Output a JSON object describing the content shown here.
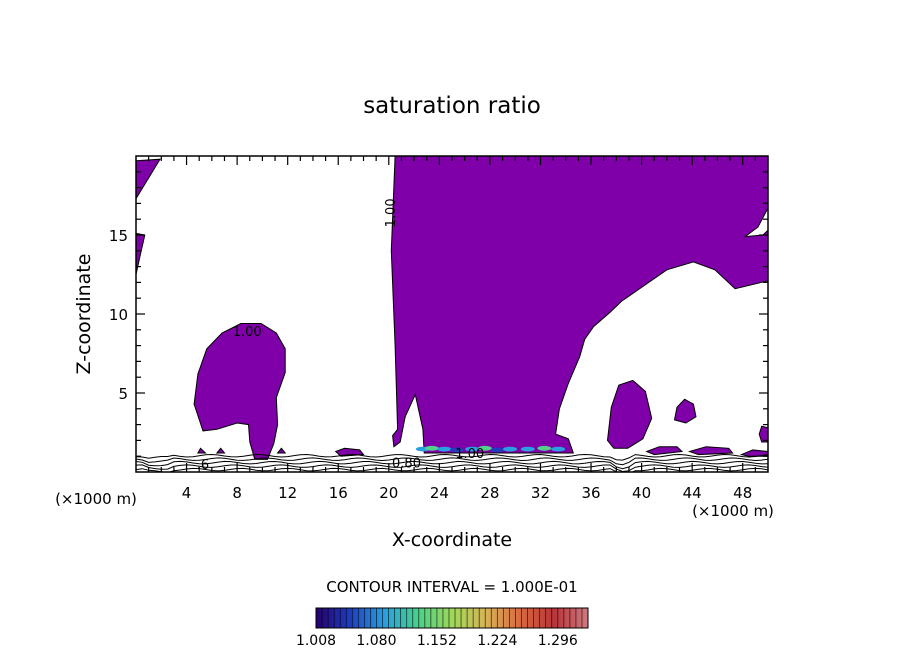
{
  "chart_data": {
    "type": "contour",
    "title": "saturation ratio",
    "xlabel": "X-coordinate",
    "ylabel": "Z-coordinate",
    "x_unit_left": "(×1000 m)",
    "x_unit_right": "(×1000 m)",
    "xlim": [
      0,
      50
    ],
    "ylim": [
      0,
      20
    ],
    "xticks": [
      4,
      8,
      12,
      16,
      20,
      24,
      28,
      32,
      36,
      40,
      44,
      48
    ],
    "yticks": [
      5,
      10,
      15
    ],
    "fill_color": "#7f00a8",
    "contour_labels": [
      {
        "text": "1.00",
        "x": 20.5,
        "y": 16.4,
        "rotated": true
      },
      {
        "text": "1.00",
        "x": 8.8,
        "y": 8.6
      },
      {
        "text": "0.80",
        "x": 21.4,
        "y": 0.3
      },
      {
        "text": "1.00",
        "x": 26.4,
        "y": 0.9
      },
      {
        "text": ".6",
        "x": 5.3,
        "y": 0.2
      }
    ],
    "contour_interval_text": "CONTOUR INTERVAL = 1.000E-01",
    "colorbar": {
      "ticks": [
        "1.008",
        "1.080",
        "1.152",
        "1.224",
        "1.296"
      ],
      "min": 1.008,
      "max": 1.332,
      "colors": [
        "#24006e",
        "#1f3dbd",
        "#2a9ee0",
        "#49d08a",
        "#9fd85a",
        "#d7b357",
        "#d96a3f",
        "#b8343a",
        "#d07a80"
      ]
    },
    "regions": [
      {
        "name": "upper-left-edge-patch",
        "pts": [
          [
            0,
            19.7
          ],
          [
            1.9,
            19.8
          ],
          [
            1.3,
            19.0
          ],
          [
            0,
            17.3
          ]
        ]
      },
      {
        "name": "left-edge-patch",
        "pts": [
          [
            0,
            15.1
          ],
          [
            0.7,
            15.0
          ],
          [
            0.3,
            13.6
          ],
          [
            0,
            12.5
          ]
        ]
      },
      {
        "name": "left-blob",
        "pts": [
          [
            4.6,
            4.3
          ],
          [
            4.9,
            6.2
          ],
          [
            5.6,
            7.8
          ],
          [
            6.8,
            8.8
          ],
          [
            8.3,
            9.4
          ],
          [
            9.9,
            9.4
          ],
          [
            11.1,
            8.8
          ],
          [
            11.8,
            7.8
          ],
          [
            11.8,
            6.3
          ],
          [
            11.1,
            4.7
          ],
          [
            11.2,
            3.0
          ],
          [
            10.9,
            1.8
          ],
          [
            10.4,
            0.8
          ],
          [
            9.4,
            0.8
          ],
          [
            9.0,
            1.9
          ],
          [
            8.9,
            3.0
          ],
          [
            8.0,
            3.1
          ],
          [
            6.4,
            2.7
          ],
          [
            5.3,
            2.6
          ]
        ]
      },
      {
        "name": "main-plume",
        "pts": [
          [
            20.5,
            20
          ],
          [
            50,
            20
          ],
          [
            50,
            16.7
          ],
          [
            49.2,
            15.5
          ],
          [
            48.2,
            14.9
          ],
          [
            49.6,
            15.0
          ],
          [
            50,
            15.3
          ],
          [
            50,
            12.1
          ],
          [
            47.4,
            11.6
          ],
          [
            45.8,
            12.8
          ],
          [
            44.1,
            13.3
          ],
          [
            42.0,
            12.8
          ],
          [
            40.2,
            11.8
          ],
          [
            38.4,
            10.8
          ],
          [
            37.5,
            10.1
          ],
          [
            36.2,
            9.2
          ],
          [
            35.5,
            8.4
          ],
          [
            35.1,
            7.3
          ],
          [
            34.2,
            5.6
          ],
          [
            33.5,
            4.0
          ],
          [
            33.2,
            2.4
          ],
          [
            34.2,
            2.1
          ],
          [
            34.6,
            1.2
          ],
          [
            22.8,
            1.2
          ],
          [
            22.7,
            2.7
          ],
          [
            22.1,
            4.9
          ],
          [
            21.3,
            3.5
          ],
          [
            20.9,
            1.9
          ],
          [
            20.4,
            1.6
          ],
          [
            20.3,
            2.3
          ],
          [
            20.7,
            2.7
          ],
          [
            20.5,
            8.0
          ],
          [
            20.2,
            14.0
          ]
        ]
      },
      {
        "name": "right-blob",
        "pts": [
          [
            37.3,
            2.0
          ],
          [
            37.6,
            4.1
          ],
          [
            38.2,
            5.5
          ],
          [
            39.3,
            5.8
          ],
          [
            40.3,
            5.1
          ],
          [
            40.8,
            3.4
          ],
          [
            40.1,
            2.1
          ],
          [
            38.9,
            1.5
          ],
          [
            37.8,
            1.5
          ]
        ]
      },
      {
        "name": "small-right-blob",
        "pts": [
          [
            42.6,
            3.3
          ],
          [
            42.8,
            4.1
          ],
          [
            43.4,
            4.6
          ],
          [
            44.1,
            4.3
          ],
          [
            44.3,
            3.5
          ],
          [
            43.5,
            3.1
          ]
        ]
      },
      {
        "name": "right-edge-blob",
        "pts": [
          [
            49.3,
            2.4
          ],
          [
            49.5,
            2.9
          ],
          [
            50,
            2.8
          ],
          [
            50,
            1.9
          ],
          [
            49.5,
            1.9
          ]
        ]
      },
      {
        "name": "low-patch-1",
        "pts": [
          [
            15.8,
            1.3
          ],
          [
            16.5,
            1.5
          ],
          [
            17.7,
            1.4
          ],
          [
            18.0,
            1.1
          ],
          [
            16.2,
            1.0
          ]
        ]
      },
      {
        "name": "low-patch-2",
        "pts": [
          [
            40.4,
            1.3
          ],
          [
            41.4,
            1.6
          ],
          [
            42.8,
            1.6
          ],
          [
            43.2,
            1.3
          ],
          [
            41.0,
            1.1
          ]
        ]
      },
      {
        "name": "low-patch-3",
        "pts": [
          [
            43.8,
            1.3
          ],
          [
            45.1,
            1.6
          ],
          [
            46.9,
            1.5
          ],
          [
            47.2,
            1.2
          ],
          [
            44.5,
            1.1
          ]
        ]
      },
      {
        "name": "low-patch-4",
        "pts": [
          [
            47.9,
            1.1
          ],
          [
            48.8,
            1.4
          ],
          [
            50,
            1.3
          ],
          [
            50,
            1.0
          ],
          [
            48.5,
            1.0
          ]
        ]
      },
      {
        "name": "low-patch-5",
        "pts": [
          [
            4.9,
            1.2
          ],
          [
            5.1,
            1.5
          ],
          [
            5.5,
            1.2
          ]
        ]
      },
      {
        "name": "low-patch-6",
        "pts": [
          [
            6.4,
            1.2
          ],
          [
            6.7,
            1.5
          ],
          [
            7.0,
            1.2
          ]
        ]
      },
      {
        "name": "low-patch-7",
        "pts": [
          [
            11.2,
            1.2
          ],
          [
            11.5,
            1.5
          ],
          [
            11.8,
            1.2
          ]
        ]
      }
    ]
  }
}
